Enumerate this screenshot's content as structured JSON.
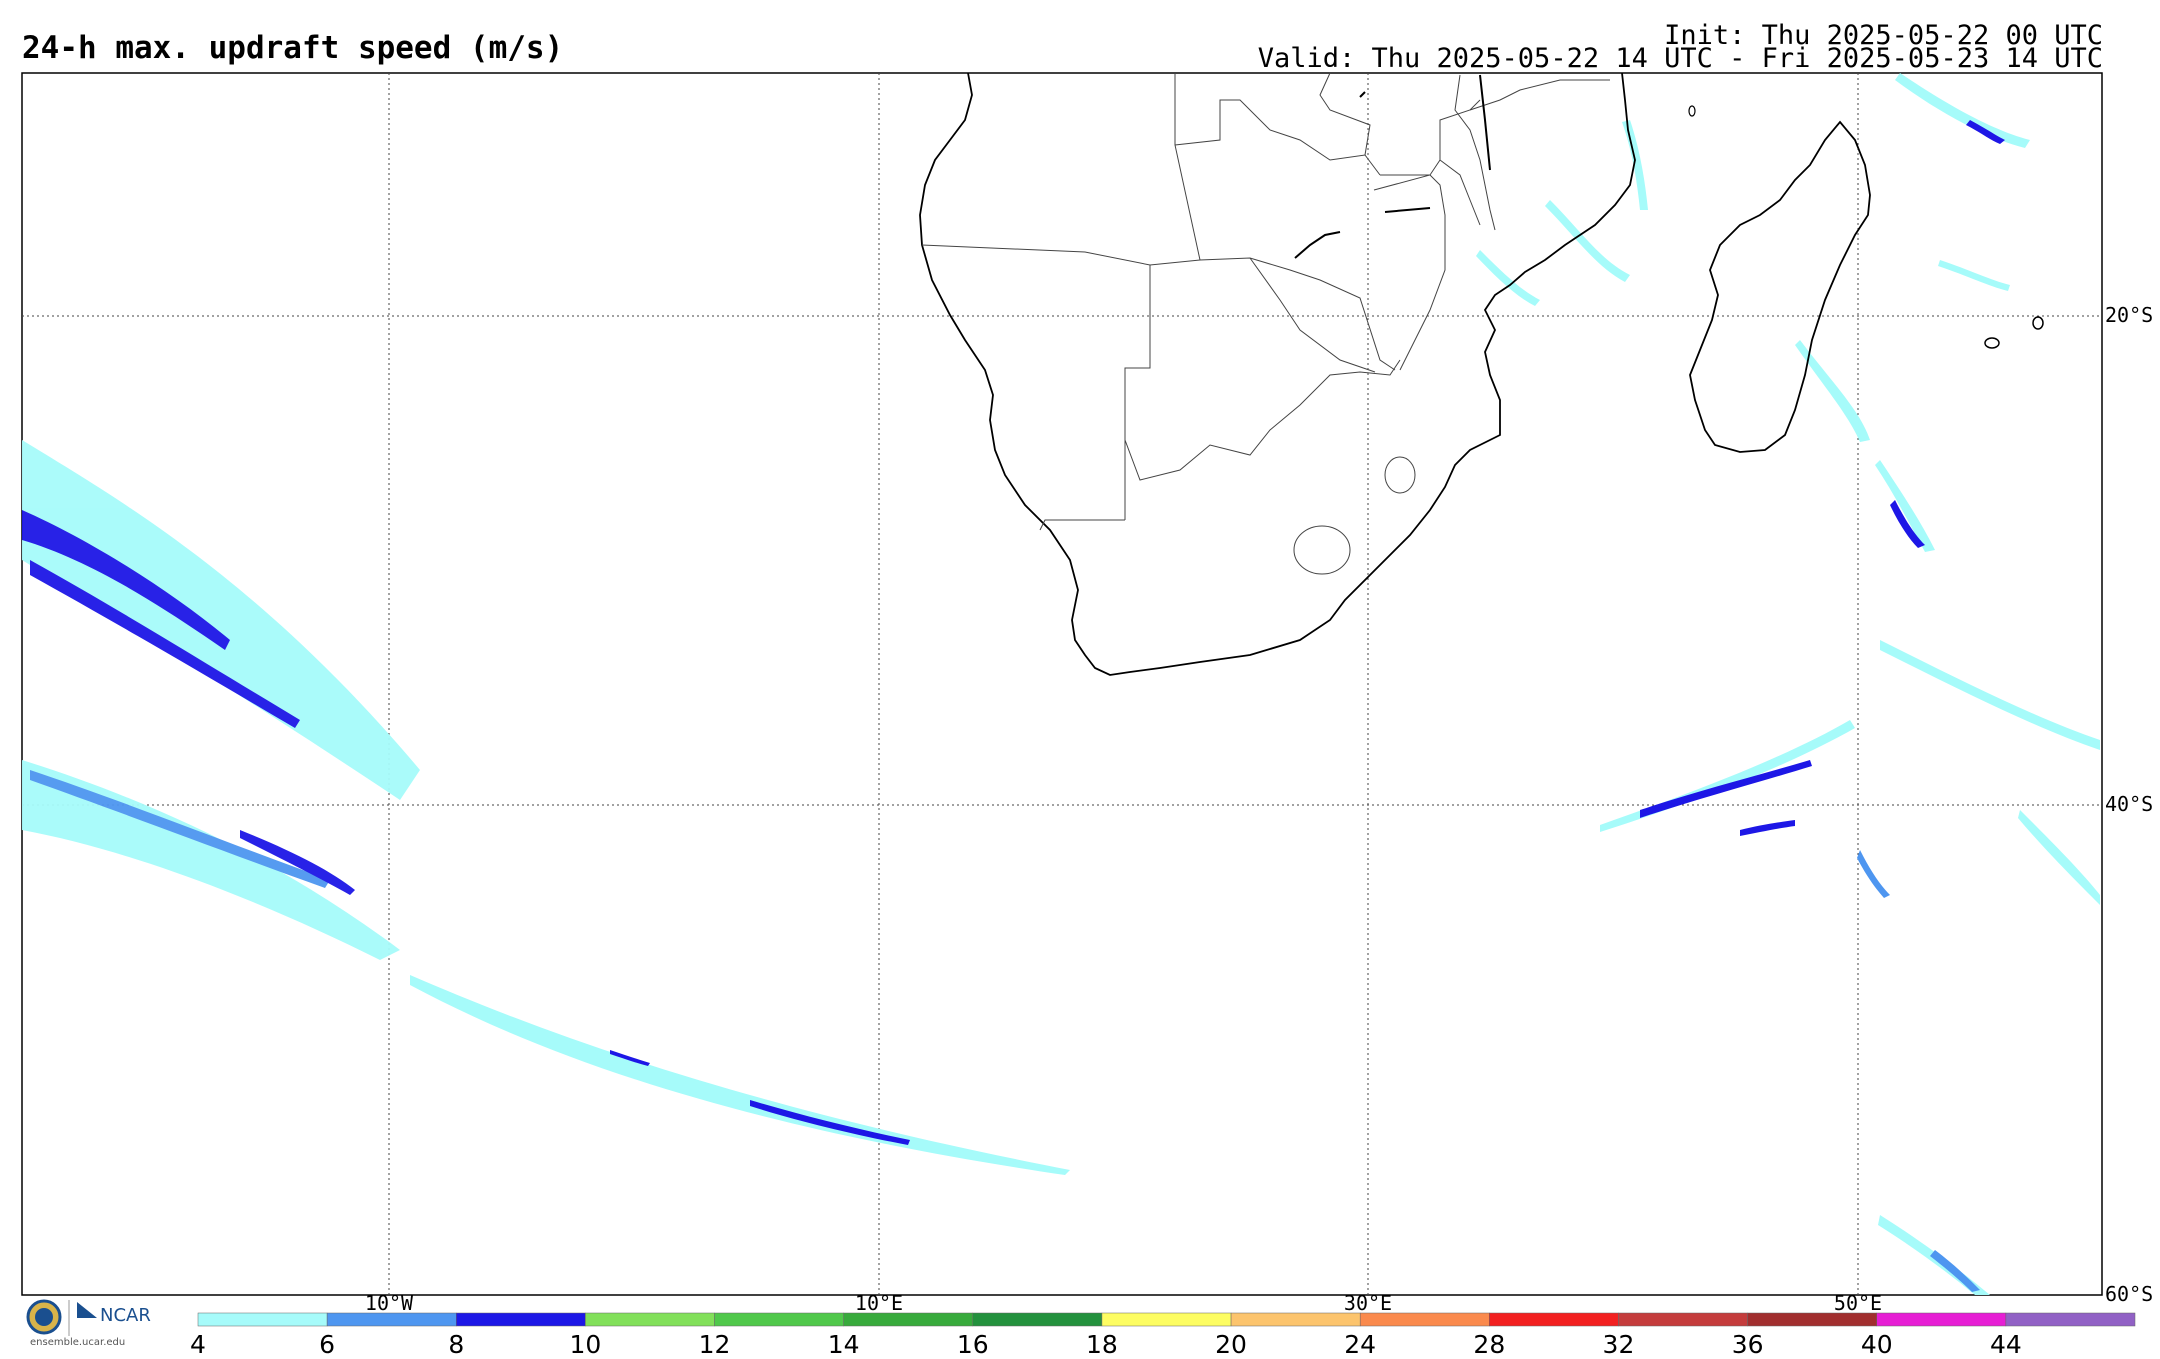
{
  "header": {
    "title": "24-h max. updraft speed (m/s)",
    "init": "Init: Thu 2025-05-22 00 UTC",
    "valid": "Valid: Thu 2025-05-22 14 UTC - Fri 2025-05-23 14 UTC"
  },
  "latitude_labels": [
    "20°S",
    "40°S",
    "60°S"
  ],
  "longitude_labels": [
    "10°W",
    "10°E",
    "30°E",
    "50°E"
  ],
  "colorbar": {
    "ticks": [
      "4",
      "6",
      "8",
      "10",
      "12",
      "14",
      "16",
      "18",
      "20",
      "24",
      "28",
      "32",
      "36",
      "40",
      "44"
    ],
    "colors": [
      "#a6fbfa",
      "#4e96f0",
      "#1d17e6",
      "#82e05a",
      "#50c84b",
      "#38aa3c",
      "#23913d",
      "#fdfd62",
      "#fcc46d",
      "#fa8a4d",
      "#f22020",
      "#c43c3c",
      "#a12e2e",
      "#e61ed4",
      "#9161c5"
    ]
  },
  "logos": {
    "ncar": "NCAR",
    "url": "ensemble.ucar.edu"
  }
}
